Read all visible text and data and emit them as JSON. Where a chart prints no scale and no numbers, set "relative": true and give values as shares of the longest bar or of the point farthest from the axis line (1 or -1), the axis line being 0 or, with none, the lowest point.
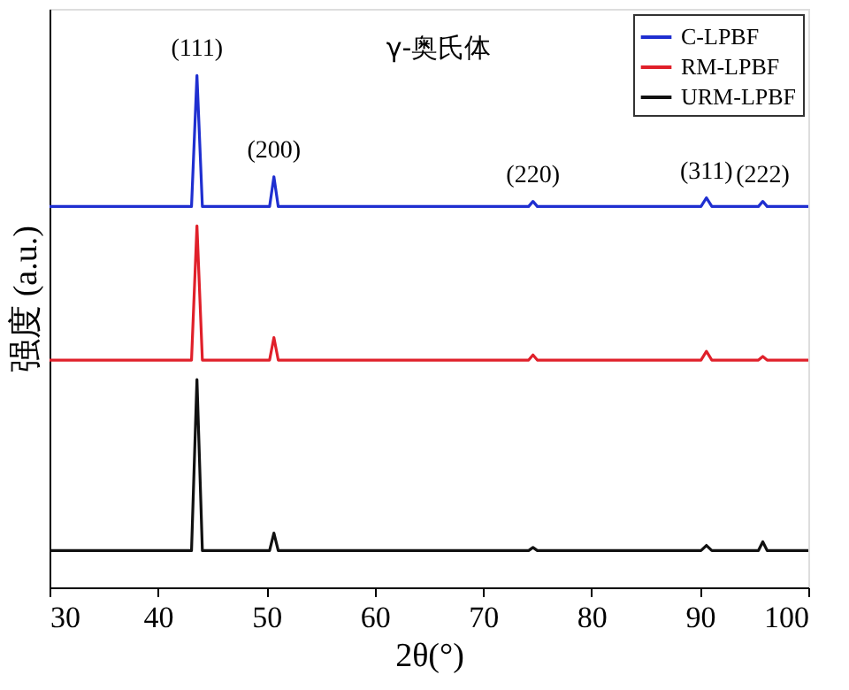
{
  "chart_data": {
    "type": "line",
    "relative": true,
    "xlabel": "2θ(°)",
    "ylabel": "强度 (a.u.)",
    "xlim": [
      30,
      100
    ],
    "xticks": [
      30,
      40,
      50,
      60,
      70,
      80,
      90,
      100
    ],
    "tick_labels": "x",
    "grid": false,
    "legend": "top right",
    "marker": "none",
    "line_style": "solid",
    "series": [
      {
        "name": "C-LPBF",
        "color": "#1f2fd0",
        "x": [
          30,
          43.1,
          43.6,
          44.1,
          50.3,
          50.7,
          51.1,
          74.2,
          74.6,
          75.0,
          90.1,
          90.6,
          91.1,
          95.4,
          95.8,
          96.2,
          100
        ],
        "values": [
          0.744,
          0.744,
          1.0,
          0.744,
          0.744,
          0.802,
          0.744,
          0.744,
          0.754,
          0.744,
          0.744,
          0.761,
          0.744,
          0.744,
          0.754,
          0.744,
          0.744
        ]
      },
      {
        "name": "RM-LPBF",
        "color": "#e0202a",
        "x": [
          30,
          43.1,
          43.6,
          44.1,
          50.3,
          50.7,
          51.1,
          74.2,
          74.6,
          75.0,
          90.1,
          90.6,
          91.1,
          95.4,
          95.8,
          96.2,
          100
        ],
        "values": [
          0.444,
          0.444,
          0.706,
          0.444,
          0.444,
          0.488,
          0.444,
          0.444,
          0.454,
          0.444,
          0.444,
          0.461,
          0.444,
          0.444,
          0.451,
          0.444,
          0.444
        ]
      },
      {
        "name": "URM-LPBF",
        "color": "#111111",
        "x": [
          30,
          43.1,
          43.6,
          44.1,
          50.3,
          50.7,
          51.1,
          74.2,
          74.6,
          75.0,
          90.1,
          90.6,
          91.1,
          95.4,
          95.8,
          96.2,
          100
        ],
        "values": [
          0.072,
          0.072,
          0.406,
          0.072,
          0.072,
          0.106,
          0.072,
          0.072,
          0.078,
          0.072,
          0.072,
          0.082,
          0.072,
          0.072,
          0.089,
          0.072,
          0.072
        ]
      }
    ],
    "annotations": [
      {
        "text": "(111)",
        "x": 43.6,
        "y": 1.0
      },
      {
        "text": "(200)",
        "x": 50.7,
        "y": 0.802
      },
      {
        "text": "(220)",
        "x": 74.6,
        "y": 0.754
      },
      {
        "text": "(311)",
        "x": 90.6,
        "y": 0.761
      },
      {
        "text": "(222)",
        "x": 95.8,
        "y": 0.754
      },
      "γ-奥氏体"
    ]
  }
}
